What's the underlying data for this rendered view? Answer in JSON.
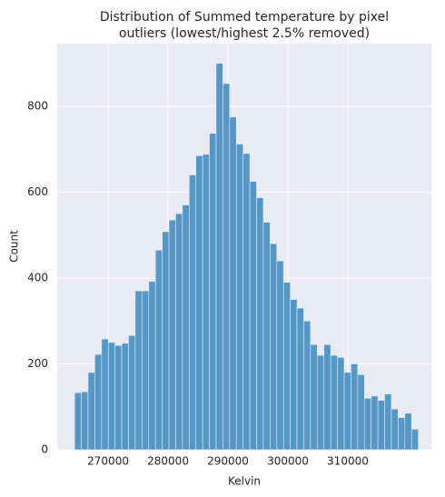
{
  "chart_data": {
    "type": "histogram",
    "title": [
      "Distribution of Summed temperature by pixel",
      "outliers (lowest/highest 2.5% removed)"
    ],
    "x_label": "Kelvin",
    "y_label": "Count",
    "bins": [
      264400,
      265525,
      266650,
      267775,
      268900,
      270025,
      271150,
      272275,
      273400,
      274525,
      275650,
      276775,
      277900,
      279025,
      280150,
      281275,
      282400,
      283525,
      284650,
      285775,
      286900,
      288025,
      289150,
      290275,
      291400,
      292525,
      293650,
      294775,
      295900,
      297025,
      298150,
      299275,
      300400,
      301525,
      302650,
      303775,
      304900,
      306025,
      307150,
      308275,
      309400,
      310525,
      311650,
      312775,
      313900,
      315025,
      316150,
      317275,
      318400,
      319525,
      320650,
      321775
    ],
    "values": [
      133,
      135,
      180,
      222,
      258,
      250,
      243,
      248,
      266,
      370,
      370,
      392,
      465,
      508,
      535,
      550,
      570,
      640,
      685,
      688,
      737,
      900,
      853,
      775,
      712,
      690,
      625,
      587,
      530,
      480,
      440,
      390,
      350,
      330,
      300,
      245,
      220,
      245,
      220,
      215,
      180,
      200,
      175,
      120,
      125,
      115,
      130,
      95,
      75,
      85,
      48
    ],
    "color": "#5597c6",
    "xlim": [
      261500,
      323950
    ],
    "xticks": [
      270000,
      280000,
      290000,
      300000,
      310000
    ],
    "ylim": [
      0,
      946
    ],
    "yticks": [
      0,
      200,
      400,
      600,
      800
    ],
    "grid": true
  }
}
